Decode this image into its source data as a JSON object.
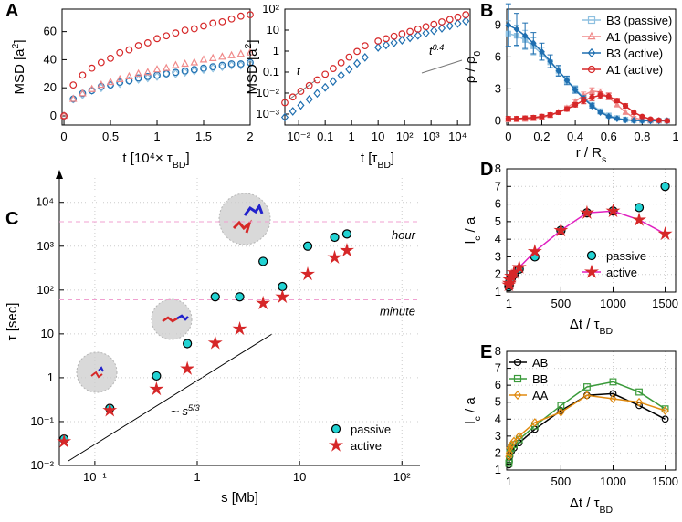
{
  "chart_data": [
    {
      "type": "scatter",
      "panel": "A",
      "xlabel": [
        "t [10⁴× τ",
        {
          "sub": "BD"
        },
        "]"
      ],
      "ylabel": [
        "MSD [a",
        {
          "sup": "2"
        },
        "]"
      ],
      "xlim": [
        -0.02,
        2
      ],
      "ylim": [
        -6.5,
        76
      ],
      "xticks": [
        0,
        0.5,
        1,
        1.5,
        2
      ],
      "yticks": [
        0,
        20,
        40,
        60
      ],
      "x": [
        0,
        0.1,
        0.2,
        0.3,
        0.4,
        0.5,
        0.6,
        0.7,
        0.8,
        0.9,
        1,
        1.1,
        1.2,
        1.3,
        1.4,
        1.5,
        1.6,
        1.7,
        1.8,
        1.9,
        2
      ],
      "series": [
        {
          "color": "#8ec0e0",
          "marker": "diamond",
          "values": [
            0,
            12,
            15,
            18,
            20,
            22,
            23,
            25,
            26,
            27,
            28,
            30,
            30,
            31,
            32,
            33,
            34,
            35,
            36,
            36,
            37
          ]
        },
        {
          "color": "#1f6fb0",
          "marker": "circle",
          "values": [
            0,
            12,
            16,
            18,
            21,
            22,
            24,
            25,
            27,
            28,
            29,
            30,
            31,
            32,
            33,
            34,
            35,
            36,
            37,
            37,
            38
          ]
        },
        {
          "color": "#f08a8a",
          "marker": "triangle",
          "values": [
            0,
            12,
            16,
            19,
            22,
            24,
            26,
            28,
            30,
            31,
            33,
            34,
            36,
            37,
            38,
            40,
            41,
            42,
            43,
            44,
            45
          ]
        },
        {
          "color": "#d62728",
          "marker": "circle",
          "values": [
            0,
            22,
            29,
            34,
            38,
            41,
            45,
            47,
            50,
            52,
            55,
            57,
            59,
            61,
            62,
            64,
            66,
            67,
            69,
            71,
            72
          ]
        }
      ]
    },
    {
      "type": "scatter",
      "xscale": "log",
      "yscale": "log",
      "xlabel": [
        "t [τ",
        {
          "sub": "BD"
        },
        "]"
      ],
      "ylabel": [
        "MSD [a",
        {
          "sup": "2"
        },
        "]"
      ],
      "xlim": [
        0.003,
        30000
      ],
      "ylim": [
        0.0003,
        100
      ],
      "xticks": [
        {
          "value": 0.01,
          "label": "10⁻²"
        },
        0.1,
        1,
        10,
        {
          "value": 100,
          "label": "10²"
        },
        {
          "value": 1000,
          "label": "10³"
        },
        {
          "value": 10000,
          "label": "10⁴"
        }
      ],
      "yticks": [
        {
          "value": 0.001,
          "label": "10⁻³"
        },
        {
          "value": 0.01,
          "label": "10⁻²"
        },
        0.1,
        1,
        10,
        {
          "value": 100,
          "label": "10²"
        }
      ],
      "annotations": [
        {
          "text": "t"
        },
        {
          "text": "t",
          "sup": "0.4"
        }
      ],
      "x": [
        0.003,
        0.006,
        0.012,
        0.025,
        0.05,
        0.1,
        0.2,
        0.4,
        0.8,
        1.6,
        3.2,
        10,
        20,
        40,
        80,
        160,
        320,
        640,
        1280,
        2560,
        5120,
        10240,
        20480
      ],
      "series": [
        {
          "color": "#1f6fb0",
          "marker": "diamond",
          "values": [
            0.0007,
            0.00135,
            0.0026,
            0.005,
            0.0097,
            0.0187,
            0.036,
            0.07,
            0.135,
            0.26,
            0.5,
            1.5,
            1.95,
            2.5,
            3.3,
            4.3,
            5.6,
            7.2,
            9.4,
            12.2,
            15.9,
            20.6,
            26.8
          ]
        },
        {
          "color": "#d62728",
          "marker": "circle",
          "values": [
            0.0035,
            0.0065,
            0.0122,
            0.0228,
            0.0425,
            0.079,
            0.148,
            0.276,
            0.515,
            0.96,
            1.8,
            3,
            3.9,
            5.1,
            6.6,
            8.6,
            11.2,
            14.5,
            18.9,
            24.6,
            32,
            41.5,
            54
          ]
        }
      ]
    },
    {
      "type": "errorbar",
      "panel": "B",
      "xlabel": [
        "r / R",
        {
          "sub": "s"
        }
      ],
      "ylabel": [
        "ρ / ρ",
        {
          "sub": "0"
        }
      ],
      "xlim": [
        -0.01,
        1
      ],
      "ylim": [
        -0.4,
        10.5
      ],
      "xticks": [
        0,
        0.2,
        0.4,
        0.6,
        0.8,
        1
      ],
      "yticks": [
        0,
        3,
        6,
        9
      ],
      "legend": "upper right",
      "x": [
        0,
        0.05,
        0.1,
        0.15,
        0.2,
        0.25,
        0.3,
        0.35,
        0.4,
        0.45,
        0.5,
        0.55,
        0.6,
        0.65,
        0.7,
        0.75,
        0.8,
        0.85,
        0.9,
        0.95
      ],
      "series": [
        {
          "name": "B3 (passive)",
          "color": "#8ec0e0",
          "marker": "square",
          "values": [
            8.2,
            8,
            7.6,
            7,
            6.3,
            5.5,
            4.7,
            3.8,
            3,
            2.2,
            1.5,
            0.9,
            0.5,
            0.25,
            0.1,
            0.05,
            0.02,
            0.01,
            0,
            0
          ],
          "errors": [
            1.2,
            1,
            0.9,
            0.8,
            0.6,
            0.5,
            0.4,
            0.3,
            0.3,
            0.2,
            0.2,
            0.15,
            0.1,
            0.1,
            0.05,
            0.05,
            0.05,
            0.05,
            0.05,
            0.05
          ]
        },
        {
          "name": "A1 (passive)",
          "color": "#f08a8a",
          "marker": "triangle",
          "values": [
            0.1,
            0.1,
            0.15,
            0.2,
            0.3,
            0.5,
            0.8,
            1.2,
            1.8,
            2.4,
            2.8,
            2.7,
            2.2,
            1.5,
            0.8,
            0.3,
            0.1,
            0.03,
            0,
            0
          ],
          "errors": [
            0.2,
            0.2,
            0.2,
            0.2,
            0.2,
            0.2,
            0.2,
            0.2,
            0.2,
            0.3,
            0.3,
            0.3,
            0.2,
            0.2,
            0.2,
            0.1,
            0.1,
            0.1,
            0.1,
            0.1
          ]
        },
        {
          "name": "B3 (active)",
          "color": "#1f6fb0",
          "marker": "diamond",
          "values": [
            9,
            8.6,
            8,
            7.3,
            6.5,
            5.6,
            4.7,
            3.8,
            2.9,
            2.1,
            1.4,
            0.8,
            0.4,
            0.2,
            0.08,
            0.03,
            0.01,
            0,
            0,
            0
          ],
          "errors": [
            2,
            1.5,
            1.2,
            1,
            0.8,
            0.6,
            0.5,
            0.4,
            0.3,
            0.25,
            0.2,
            0.15,
            0.1,
            0.1,
            0.05,
            0.05,
            0.05,
            0.05,
            0.05,
            0.05
          ]
        },
        {
          "name": "A1 (active)",
          "color": "#d62728",
          "marker": "circle",
          "values": [
            0.2,
            0.2,
            0.25,
            0.3,
            0.4,
            0.55,
            0.8,
            1.1,
            1.5,
            1.9,
            2.2,
            2.4,
            2.3,
            1.9,
            1.4,
            0.8,
            0.4,
            0.15,
            0.05,
            0
          ],
          "errors": [
            0.2,
            0.2,
            0.2,
            0.2,
            0.2,
            0.2,
            0.2,
            0.2,
            0.2,
            0.3,
            0.3,
            0.3,
            0.3,
            0.2,
            0.2,
            0.2,
            0.1,
            0.1,
            0.1,
            0.1
          ]
        }
      ]
    },
    {
      "type": "scatter",
      "panel": "C",
      "xscale": "log",
      "yscale": "log",
      "grid": true,
      "xlabel": [
        "s [Mb]"
      ],
      "ylabel": [
        "τ [sec]"
      ],
      "xlim": [
        0.045,
        150
      ],
      "ylim": [
        0.01,
        36000
      ],
      "xticks": [
        {
          "value": 0.1,
          "label": "10⁻¹"
        },
        1,
        10,
        {
          "value": 100,
          "label": "10²"
        }
      ],
      "yticks": [
        {
          "value": 0.01,
          "label": "10⁻²"
        },
        {
          "value": 0.1,
          "label": "10⁻¹"
        },
        1,
        10,
        {
          "value": 100,
          "label": "10²"
        },
        {
          "value": 1000,
          "label": "10³"
        },
        {
          "value": 10000,
          "label": "10⁴"
        }
      ],
      "reference_lines": [
        {
          "value": 3600,
          "label": "hour"
        },
        {
          "value": 60,
          "label": "minute"
        }
      ],
      "annotations": [
        {
          "text": "∼ s",
          "sup": "5/3"
        }
      ],
      "legend": "lower right",
      "x": [
        0.05,
        0.14,
        0.4,
        0.8,
        1.5,
        2.6,
        4.4,
        6.8,
        12,
        22,
        29
      ],
      "series": [
        {
          "name": "passive",
          "color": "#22d3d3",
          "edgecolor": "#000000",
          "filled": true,
          "marker": "circle",
          "values": [
            0.04,
            0.2,
            1.1,
            6,
            70,
            70,
            450,
            120,
            1000,
            1600,
            1900
          ]
        },
        {
          "name": "active",
          "color": "#d62728",
          "filled": true,
          "marker": "star",
          "values": [
            0.035,
            0.18,
            0.55,
            1.6,
            6.2,
            13,
            50,
            70,
            230,
            550,
            800
          ]
        }
      ]
    },
    {
      "type": "scatter",
      "panel": "D",
      "grid": true,
      "xlabel": [
        "Δt / τ",
        {
          "sub": "BD"
        }
      ],
      "ylabel": [
        "l",
        {
          "sub": "c"
        },
        " / a"
      ],
      "xlim": [
        -20,
        1600
      ],
      "ylim": [
        1,
        8
      ],
      "xticks": [
        1,
        500,
        1000,
        1500
      ],
      "yticks": [
        1,
        2,
        3,
        4,
        5,
        6,
        7,
        8
      ],
      "legend": "lower right",
      "x": [
        1,
        5,
        10,
        25,
        50,
        100,
        250,
        500,
        750,
        1000,
        1250,
        1500
      ],
      "series": [
        {
          "name": "passive",
          "color": "#22d3d3",
          "edgecolor": "#000000",
          "filled": true,
          "marker": "circle",
          "values": [
            1.3,
            1.4,
            1.6,
            1.8,
            2,
            2.3,
            3,
            4.5,
            5.5,
            5.6,
            5.8,
            7
          ]
        },
        {
          "name": "active",
          "color": "#d62728",
          "filled": true,
          "marker": "star",
          "line_color": "#e020c0",
          "values": [
            1.4,
            1.5,
            1.7,
            1.9,
            2.1,
            2.4,
            3.3,
            4.5,
            5.5,
            5.6,
            5.1,
            4.3
          ]
        }
      ]
    },
    {
      "type": "line",
      "panel": "E",
      "grid": true,
      "xlabel": [
        "Δt / τ",
        {
          "sub": "BD"
        }
      ],
      "ylabel": [
        "l",
        {
          "sub": "c"
        },
        " / a"
      ],
      "xlim": [
        -20,
        1600
      ],
      "ylim": [
        1,
        8
      ],
      "xticks": [
        1,
        500,
        1000,
        1500
      ],
      "yticks": [
        1,
        2,
        3,
        4,
        5,
        6,
        7,
        8
      ],
      "legend": "upper left",
      "x": [
        1,
        5,
        10,
        25,
        50,
        100,
        250,
        500,
        750,
        1000,
        1250,
        1500
      ],
      "series": [
        {
          "name": "AB",
          "color": "#000000",
          "marker": "circle",
          "values": [
            1.3,
            1.5,
            1.8,
            2.1,
            2.3,
            2.6,
            3.4,
            4.5,
            5.4,
            5.5,
            4.8,
            4
          ]
        },
        {
          "name": "BB",
          "color": "#3a9a3a",
          "marker": "square",
          "values": [
            1.4,
            1.6,
            2,
            2.3,
            2.5,
            2.8,
            3.6,
            4.8,
            5.9,
            6.2,
            5.6,
            4.6
          ]
        },
        {
          "name": "AA",
          "color": "#e08a10",
          "marker": "diamond",
          "values": [
            1.8,
            2,
            2.3,
            2.5,
            2.7,
            3,
            3.8,
            4.4,
            5.4,
            5.2,
            5,
            4.5
          ]
        }
      ]
    }
  ]
}
